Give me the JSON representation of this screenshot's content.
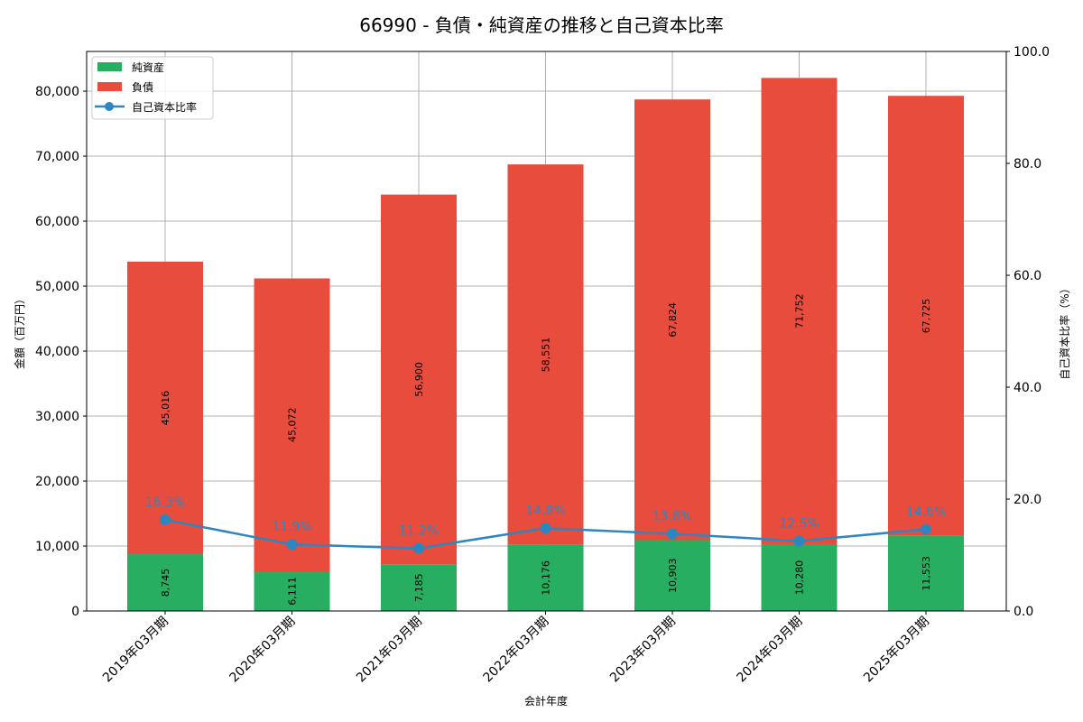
{
  "chart_data": {
    "type": "bar",
    "stacked": true,
    "title": "66990 - 負債・純資産の推移と自己資本比率",
    "xlabel": "会計年度",
    "ylabel": "金額（百万円）",
    "y2label": "自己資本比率（%）",
    "ylim": [
      0,
      86111
    ],
    "y2lim": [
      0,
      100
    ],
    "yticks": [
      "0",
      "10,000",
      "20,000",
      "30,000",
      "40,000",
      "50,000",
      "60,000",
      "70,000",
      "80,000"
    ],
    "y2ticks": [
      "0.0",
      "20.0",
      "40.0",
      "60.0",
      "80.0",
      "100.0"
    ],
    "grid": true,
    "legend_position": "upper left",
    "categories": [
      "2019年03月期",
      "2020年03月期",
      "2021年03月期",
      "2022年03月期",
      "2023年03月期",
      "2024年03月期",
      "2025年03月期"
    ],
    "series": [
      {
        "name": "純資産",
        "type": "bar",
        "color": "#27ae60",
        "values": [
          8745,
          6111,
          7185,
          10176,
          10903,
          10280,
          11553
        ],
        "labels": [
          "8,745",
          "6,111",
          "7,185",
          "10,176",
          "10,903",
          "10,280",
          "11,553"
        ]
      },
      {
        "name": "負債",
        "type": "bar",
        "color": "#e74c3c",
        "values": [
          45016,
          45072,
          56900,
          58551,
          67824,
          71752,
          67725
        ],
        "labels": [
          "45,016",
          "45,072",
          "56,900",
          "58,551",
          "67,824",
          "71,752",
          "67,725"
        ]
      },
      {
        "name": "自己資本比率",
        "type": "line",
        "axis": "right",
        "color": "#2e86c1",
        "values": [
          16.3,
          11.9,
          11.2,
          14.8,
          13.8,
          12.5,
          14.6
        ],
        "labels": [
          "16.3%",
          "11.9%",
          "11.2%",
          "14.8%",
          "13.8%",
          "12.5%",
          "14.6%"
        ]
      }
    ]
  }
}
